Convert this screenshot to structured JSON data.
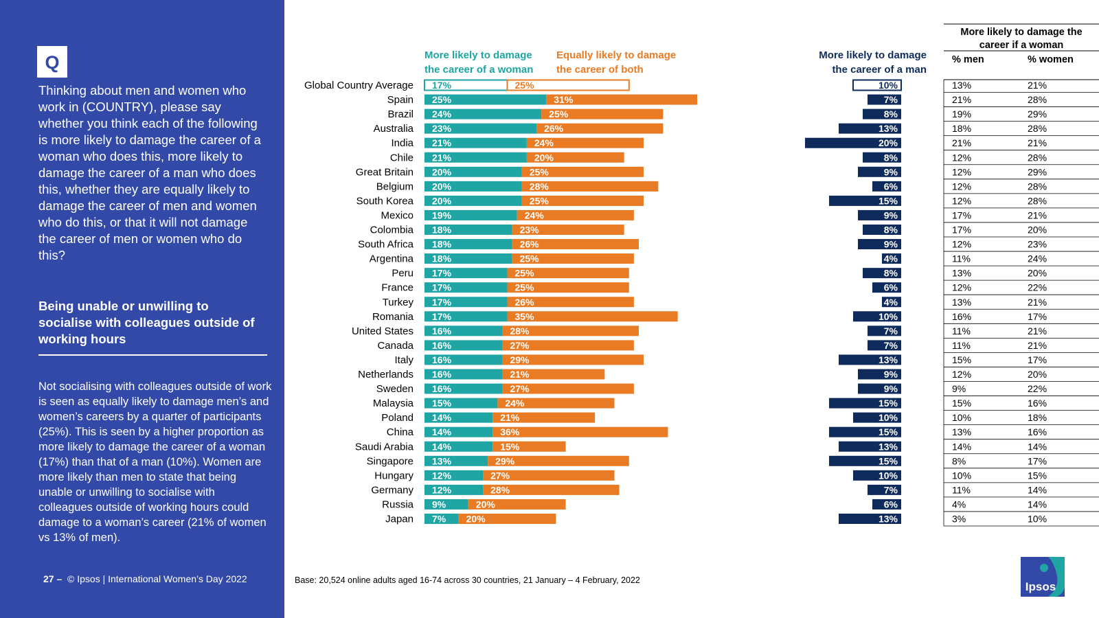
{
  "sidebar": {
    "badge": "Q",
    "question": "Thinking about men and women who work in (COUNTRY), please say whether you think each of the following is more likely to damage the career of a woman who does this, more likely to damage the career of a man who does this, whether they are equally likely to damage the career of men and women who do this, or that it will not damage the career of men or women who do this?",
    "topic": "Being unable or unwilling to socialise with colleagues outside of working hours",
    "summary": "Not socialising with colleagues outside of work is seen as equally likely to damage men’s and women’s careers by a quarter of participants (25%). This is seen by a higher proportion as more likely to damage the career of a woman (17%) than that of a man (10%). Women are more likely than men to state that being unable or unwilling to socialise with colleagues outside of working hours could damage to a woman’s career (21% of women vs 13% of men).",
    "footer_page": "27 –",
    "footer_text": "© Ipsos | International Women’s Day 2022"
  },
  "base_note": "Base: 20,524 online adults aged 16-74 across 30 countries, 21 January – 4 February, 2022",
  "logo_text": "Ipsos",
  "colors": {
    "sidebar": "#3249a8",
    "woman": "#1fa5a3",
    "both": "#e87b24",
    "man": "#0f2b5c"
  },
  "chart_data": {
    "type": "bar",
    "headers": {
      "woman": [
        "More likely to damage",
        "the career of a woman"
      ],
      "both": [
        "Equally likely to damage",
        "the career of both"
      ],
      "man": [
        "More likely to damage",
        "the career of a man"
      ],
      "table_title": [
        "More likely to damage the",
        "career if a woman"
      ],
      "col_men": "% men",
      "col_women": "% women"
    },
    "categories": [
      "Global Country Average",
      "Spain",
      "Brazil",
      "Australia",
      "India",
      "Chile",
      "Great Britain",
      "Belgium",
      "South Korea",
      "Mexico",
      "Colombia",
      "South Africa",
      "Argentina",
      "Peru",
      "France",
      "Turkey",
      "Romania",
      "United States",
      "Canada",
      "Italy",
      "Netherlands",
      "Sweden",
      "Malaysia",
      "Poland",
      "China",
      "Saudi Arabia",
      "Singapore",
      "Hungary",
      "Germany",
      "Russia",
      "Japan"
    ],
    "series": [
      {
        "name": "More likely to damage the career of a woman",
        "values": [
          17,
          25,
          24,
          23,
          21,
          21,
          20,
          20,
          20,
          19,
          18,
          18,
          18,
          17,
          17,
          17,
          17,
          16,
          16,
          16,
          16,
          16,
          15,
          14,
          14,
          14,
          13,
          12,
          12,
          9,
          7
        ]
      },
      {
        "name": "Equally likely to damage the career of both",
        "values": [
          25,
          31,
          25,
          26,
          24,
          20,
          25,
          28,
          25,
          24,
          23,
          26,
          25,
          25,
          25,
          26,
          35,
          28,
          27,
          29,
          21,
          27,
          24,
          21,
          36,
          15,
          29,
          27,
          28,
          20,
          20
        ]
      },
      {
        "name": "More likely to damage the career of a man",
        "values": [
          10,
          7,
          8,
          13,
          20,
          8,
          9,
          6,
          15,
          9,
          8,
          9,
          4,
          8,
          6,
          4,
          10,
          7,
          7,
          13,
          9,
          9,
          15,
          10,
          15,
          13,
          15,
          10,
          7,
          6,
          13
        ]
      }
    ],
    "table": {
      "men": [
        13,
        21,
        19,
        18,
        21,
        12,
        12,
        12,
        12,
        17,
        17,
        12,
        11,
        13,
        12,
        13,
        16,
        11,
        11,
        15,
        12,
        9,
        15,
        10,
        13,
        14,
        8,
        10,
        11,
        4,
        3
      ],
      "women": [
        21,
        28,
        29,
        28,
        21,
        28,
        29,
        28,
        28,
        21,
        20,
        23,
        24,
        20,
        22,
        21,
        17,
        21,
        21,
        17,
        20,
        22,
        16,
        18,
        16,
        14,
        17,
        15,
        14,
        14,
        10
      ]
    }
  }
}
